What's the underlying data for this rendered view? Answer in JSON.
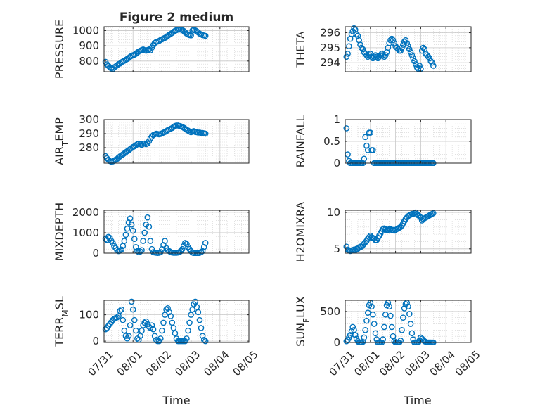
{
  "figure": {
    "title": "Figure 2 medium",
    "xlabel": "Time",
    "marker_color": "#0072bd"
  },
  "chart_data": [
    {
      "type": "scatter",
      "name": "pressure",
      "ylabel": "PRESSURE",
      "ylim": [
        730,
        1025
      ],
      "yticks": [
        800,
        900,
        1000
      ],
      "xticks": [],
      "xlabel": "",
      "grid": true,
      "minor_grid": true,
      "x": [
        0.05,
        0.1,
        0.15,
        0.2,
        0.25,
        0.3,
        0.35,
        0.4,
        0.45,
        0.5,
        0.55,
        0.6,
        0.65,
        0.7,
        0.75,
        0.8,
        0.85,
        0.9,
        0.95,
        1.0,
        1.05,
        1.1,
        1.15,
        1.2,
        1.25,
        1.3,
        1.35,
        1.4,
        1.45,
        1.5,
        1.55,
        1.6,
        1.65,
        1.7,
        1.75,
        1.8,
        1.85,
        1.9,
        1.95,
        2.0,
        2.05,
        2.1,
        2.15,
        2.2,
        2.25,
        2.3,
        2.35,
        2.4,
        2.45,
        2.5,
        2.55,
        2.6,
        2.65,
        2.7,
        2.75,
        2.8,
        2.85,
        2.9,
        2.95,
        3.0,
        3.05,
        3.1,
        3.15,
        3.2,
        3.25,
        3.3,
        3.35,
        3.4,
        3.45,
        3.5
      ],
      "y": [
        795,
        778,
        768,
        760,
        752,
        748,
        758,
        765,
        772,
        780,
        784,
        792,
        797,
        802,
        808,
        814,
        820,
        828,
        834,
        838,
        842,
        848,
        856,
        863,
        868,
        872,
        876,
        871,
        868,
        872,
        876,
        870,
        888,
        905,
        918,
        925,
        928,
        932,
        938,
        942,
        948,
        952,
        958,
        965,
        972,
        978,
        984,
        992,
        998,
        1003,
        1006,
        1007,
        1006,
        1003,
        997,
        988,
        980,
        974,
        970,
        968,
        1000,
        1005,
        1001,
        995,
        988,
        980,
        975,
        970,
        968,
        965
      ]
    },
    {
      "type": "scatter",
      "name": "theta",
      "ylabel": "THETA",
      "ylim": [
        293.4,
        296.4
      ],
      "yticks": [
        294,
        295,
        296
      ],
      "xticks": [],
      "xlabel": "",
      "grid": true,
      "minor_grid": true,
      "x": [
        0.05,
        0.1,
        0.15,
        0.2,
        0.25,
        0.3,
        0.35,
        0.4,
        0.45,
        0.5,
        0.55,
        0.6,
        0.65,
        0.7,
        0.75,
        0.8,
        0.85,
        0.9,
        0.95,
        1.0,
        1.05,
        1.1,
        1.15,
        1.2,
        1.25,
        1.3,
        1.35,
        1.4,
        1.45,
        1.5,
        1.55,
        1.6,
        1.65,
        1.7,
        1.75,
        1.8,
        1.85,
        1.9,
        1.95,
        2.0,
        2.05,
        2.1,
        2.15,
        2.2,
        2.25,
        2.3,
        2.35,
        2.4,
        2.45,
        2.5,
        2.55,
        2.6,
        2.65,
        2.7,
        2.75,
        2.8,
        2.85,
        2.9,
        2.95,
        3.0,
        3.05,
        3.1,
        3.15,
        3.2,
        3.25,
        3.3,
        3.35,
        3.4,
        3.45,
        3.5
      ],
      "y": [
        294.4,
        294.6,
        295.1,
        295.6,
        295.9,
        296.1,
        296.3,
        296.2,
        295.9,
        295.8,
        295.5,
        295.2,
        295.0,
        294.9,
        294.7,
        294.6,
        294.5,
        294.4,
        294.5,
        294.6,
        294.4,
        294.3,
        294.4,
        294.5,
        294.4,
        294.3,
        294.4,
        294.5,
        294.6,
        294.5,
        294.4,
        294.5,
        294.7,
        295.0,
        295.3,
        295.5,
        295.6,
        295.5,
        295.3,
        295.1,
        295.0,
        294.9,
        294.8,
        294.8,
        295.0,
        295.2,
        295.4,
        295.5,
        295.3,
        295.1,
        294.9,
        294.7,
        294.5,
        294.3,
        294.1,
        293.9,
        293.7,
        293.6,
        293.8,
        293.6,
        294.8,
        295.0,
        294.9,
        294.6,
        294.5,
        294.4,
        294.3,
        294.1,
        294.0,
        293.8
      ]
    },
    {
      "type": "scatter",
      "name": "air-temp",
      "ylabel": "AIR_TEMP",
      "ylim": [
        269,
        300
      ],
      "yticks": [
        280,
        290,
        300
      ],
      "xticks": [],
      "xlabel": "",
      "grid": true,
      "minor_grid": true,
      "x": [
        0.05,
        0.1,
        0.15,
        0.2,
        0.25,
        0.3,
        0.35,
        0.4,
        0.45,
        0.5,
        0.55,
        0.6,
        0.65,
        0.7,
        0.75,
        0.8,
        0.85,
        0.9,
        0.95,
        1.0,
        1.05,
        1.1,
        1.15,
        1.2,
        1.25,
        1.3,
        1.35,
        1.4,
        1.45,
        1.5,
        1.55,
        1.6,
        1.65,
        1.7,
        1.75,
        1.8,
        1.85,
        1.9,
        1.95,
        2.0,
        2.05,
        2.1,
        2.15,
        2.2,
        2.25,
        2.3,
        2.35,
        2.4,
        2.45,
        2.5,
        2.55,
        2.6,
        2.65,
        2.7,
        2.75,
        2.8,
        2.85,
        2.9,
        2.95,
        3.0,
        3.05,
        3.1,
        3.15,
        3.2,
        3.25,
        3.3,
        3.35,
        3.4,
        3.45,
        3.5
      ],
      "y": [
        274,
        272.5,
        271.5,
        270.5,
        270,
        270.2,
        270.8,
        271.5,
        272,
        273,
        273.8,
        274.5,
        275.2,
        276,
        276.8,
        277.5,
        278.2,
        279,
        279.8,
        280.5,
        281,
        281.8,
        282.5,
        283,
        282.5,
        282,
        282.8,
        283,
        282.5,
        283,
        284.5,
        286.5,
        288,
        289,
        289.5,
        290,
        289.8,
        289.5,
        289.8,
        290.2,
        290.8,
        291.2,
        291.8,
        292.5,
        293,
        293.5,
        294,
        294.8,
        295.5,
        295.8,
        295.8,
        295.5,
        295.2,
        294.8,
        294.2,
        293.5,
        292.8,
        292.2,
        291.5,
        291,
        291.5,
        291.8,
        291.2,
        291,
        290.8,
        290.8,
        290.5,
        290.5,
        290.2,
        290
      ]
    },
    {
      "type": "scatter",
      "name": "rainfall",
      "ylabel": "RAINFALL",
      "ylim": [
        0,
        1
      ],
      "yticks": [
        0,
        0.5,
        1
      ],
      "xticks": [],
      "xlabel": "",
      "grid": true,
      "minor_grid": true,
      "x": [
        0.05,
        0.1,
        0.15,
        0.2,
        0.25,
        0.3,
        0.35,
        0.4,
        0.45,
        0.5,
        0.55,
        0.6,
        0.65,
        0.7,
        0.75,
        0.8,
        0.85,
        0.9,
        0.95,
        1.0,
        1.05,
        1.1,
        1.15,
        1.2,
        1.25,
        1.3,
        1.35,
        1.4,
        1.45,
        1.5,
        1.55,
        1.6,
        1.65,
        1.7,
        1.75,
        1.8,
        1.85,
        1.9,
        1.95,
        2.0,
        2.05,
        2.1,
        2.15,
        2.2,
        2.25,
        2.3,
        2.35,
        2.4,
        2.45,
        2.5,
        2.55,
        2.6,
        2.65,
        2.7,
        2.75,
        2.8,
        2.85,
        2.9,
        2.95,
        3.0,
        3.05,
        3.1,
        3.15,
        3.2,
        3.25,
        3.3,
        3.35,
        3.4,
        3.45,
        3.5
      ],
      "y": [
        0.8,
        0.2,
        0.05,
        0,
        0,
        0,
        0,
        0,
        0,
        0,
        0,
        0,
        0,
        0,
        0.1,
        0.6,
        0.4,
        0.3,
        0.7,
        0.7,
        0.3,
        0.3,
        0,
        0,
        0,
        0,
        0,
        0,
        0,
        0,
        0,
        0,
        0,
        0,
        0,
        0,
        0,
        0,
        0,
        0,
        0,
        0,
        0,
        0,
        0,
        0,
        0,
        0,
        0,
        0,
        0,
        0,
        0,
        0,
        0,
        0,
        0,
        0,
        0,
        0,
        0,
        0,
        0,
        0,
        0,
        0,
        0,
        0,
        0,
        0
      ]
    },
    {
      "type": "scatter",
      "name": "mixdepth",
      "ylabel": "MIXDEPTH",
      "ylim": [
        0,
        2100
      ],
      "yticks": [
        0,
        1000,
        2000
      ],
      "xticks": [],
      "xlabel": "",
      "grid": true,
      "minor_grid": true,
      "x": [
        0.05,
        0.1,
        0.15,
        0.2,
        0.25,
        0.3,
        0.35,
        0.4,
        0.45,
        0.5,
        0.55,
        0.6,
        0.65,
        0.7,
        0.75,
        0.8,
        0.85,
        0.9,
        0.95,
        1.0,
        1.05,
        1.1,
        1.15,
        1.2,
        1.25,
        1.3,
        1.35,
        1.4,
        1.45,
        1.5,
        1.55,
        1.6,
        1.65,
        1.7,
        1.75,
        1.8,
        1.85,
        1.9,
        1.95,
        2.0,
        2.05,
        2.1,
        2.15,
        2.2,
        2.25,
        2.3,
        2.35,
        2.4,
        2.45,
        2.5,
        2.55,
        2.6,
        2.65,
        2.7,
        2.75,
        2.8,
        2.85,
        2.9,
        2.95,
        3.0,
        3.05,
        3.1,
        3.15,
        3.2,
        3.25,
        3.3,
        3.35,
        3.4,
        3.45,
        3.5
      ],
      "y": [
        700,
        650,
        800,
        750,
        600,
        500,
        350,
        250,
        150,
        100,
        120,
        180,
        350,
        600,
        900,
        1200,
        1500,
        1700,
        1400,
        1100,
        700,
        300,
        100,
        50,
        80,
        150,
        600,
        1000,
        1400,
        1750,
        1300,
        600,
        200,
        50,
        30,
        20,
        10,
        20,
        50,
        200,
        400,
        600,
        250,
        150,
        100,
        50,
        30,
        20,
        20,
        20,
        30,
        50,
        100,
        200,
        350,
        500,
        450,
        300,
        200,
        100,
        30,
        0,
        0,
        0,
        0,
        20,
        50,
        100,
        300,
        500
      ]
    },
    {
      "type": "scatter",
      "name": "h2omixra",
      "ylabel": "H2OMIXRA",
      "ylim": [
        4.4,
        10.3
      ],
      "yticks": [
        5,
        10
      ],
      "xticks": [],
      "xlabel": "",
      "grid": true,
      "minor_grid": true,
      "x": [
        0.05,
        0.1,
        0.15,
        0.2,
        0.25,
        0.3,
        0.35,
        0.4,
        0.45,
        0.5,
        0.55,
        0.6,
        0.65,
        0.7,
        0.75,
        0.8,
        0.85,
        0.9,
        0.95,
        1.0,
        1.05,
        1.1,
        1.15,
        1.2,
        1.25,
        1.3,
        1.35,
        1.4,
        1.45,
        1.5,
        1.55,
        1.6,
        1.65,
        1.7,
        1.75,
        1.8,
        1.85,
        1.9,
        1.95,
        2.0,
        2.05,
        2.1,
        2.15,
        2.2,
        2.25,
        2.3,
        2.35,
        2.4,
        2.45,
        2.5,
        2.55,
        2.6,
        2.65,
        2.7,
        2.75,
        2.8,
        2.85,
        2.9,
        2.95,
        3.0,
        3.05,
        3.1,
        3.15,
        3.2,
        3.25,
        3.3,
        3.35,
        3.4,
        3.45,
        3.5
      ],
      "y": [
        5.3,
        4.9,
        4.8,
        4.7,
        4.8,
        4.8,
        4.9,
        4.8,
        5.0,
        5.0,
        5.2,
        5.3,
        5.3,
        5.5,
        5.7,
        5.9,
        6.1,
        6.4,
        6.6,
        6.8,
        6.6,
        6.5,
        6.4,
        6.2,
        6.2,
        6.5,
        6.8,
        7.1,
        7.4,
        7.7,
        7.8,
        7.7,
        7.6,
        7.6,
        7.7,
        7.7,
        7.6,
        7.6,
        7.5,
        7.6,
        7.7,
        7.8,
        7.9,
        8.0,
        8.2,
        8.5,
        8.8,
        9.1,
        9.3,
        9.5,
        9.6,
        9.7,
        9.8,
        9.8,
        9.9,
        10.0,
        9.8,
        9.6,
        9.5,
        9.3,
        8.9,
        9.1,
        9.2,
        9.3,
        9.4,
        9.5,
        9.6,
        9.7,
        9.8,
        9.9
      ]
    },
    {
      "type": "scatter",
      "name": "terr-msl",
      "ylabel": "TERR_MSL",
      "ylim": [
        -5,
        155
      ],
      "yticks": [
        0,
        100
      ],
      "xlabel": "Time",
      "xticks": [
        "07/31",
        "08/01",
        "08/02",
        "08/03",
        "08/04",
        "08/05"
      ],
      "grid": true,
      "minor_grid": true,
      "x": [
        0.05,
        0.1,
        0.15,
        0.2,
        0.25,
        0.3,
        0.35,
        0.4,
        0.45,
        0.5,
        0.55,
        0.6,
        0.65,
        0.7,
        0.75,
        0.8,
        0.85,
        0.9,
        0.95,
        1.0,
        1.05,
        1.1,
        1.15,
        1.2,
        1.25,
        1.3,
        1.35,
        1.4,
        1.45,
        1.5,
        1.55,
        1.6,
        1.65,
        1.7,
        1.75,
        1.8,
        1.85,
        1.9,
        1.95,
        2.0,
        2.05,
        2.1,
        2.15,
        2.2,
        2.25,
        2.3,
        2.35,
        2.4,
        2.45,
        2.5,
        2.55,
        2.6,
        2.65,
        2.7,
        2.75,
        2.8,
        2.85,
        2.9,
        2.95,
        3.0,
        3.05,
        3.1,
        3.15,
        3.2,
        3.25,
        3.3,
        3.35,
        3.4,
        3.45,
        3.5
      ],
      "y": [
        45,
        50,
        58,
        65,
        72,
        80,
        85,
        88,
        90,
        95,
        115,
        120,
        80,
        40,
        20,
        10,
        20,
        60,
        150,
        120,
        80,
        40,
        10,
        5,
        20,
        40,
        60,
        70,
        75,
        65,
        55,
        50,
        60,
        45,
        20,
        5,
        0,
        0,
        10,
        40,
        70,
        100,
        120,
        125,
        110,
        95,
        70,
        50,
        30,
        10,
        0,
        0,
        0,
        0,
        0,
        0,
        10,
        40,
        70,
        100,
        120,
        140,
        150,
        130,
        110,
        80,
        50,
        20,
        5,
        0
      ]
    },
    {
      "type": "scatter",
      "name": "sun-flux",
      "ylabel": "SUN_FLUX",
      "ylim": [
        0,
        680
      ],
      "yticks": [
        0,
        500
      ],
      "xlabel": "Time",
      "xticks": [
        "07/31",
        "08/01",
        "08/02",
        "08/03",
        "08/04",
        "08/05"
      ],
      "grid": true,
      "minor_grid": true,
      "x": [
        0.05,
        0.1,
        0.15,
        0.2,
        0.25,
        0.3,
        0.35,
        0.4,
        0.45,
        0.5,
        0.55,
        0.6,
        0.65,
        0.7,
        0.75,
        0.8,
        0.85,
        0.9,
        0.95,
        1.0,
        1.05,
        1.1,
        1.15,
        1.2,
        1.25,
        1.3,
        1.35,
        1.4,
        1.45,
        1.5,
        1.55,
        1.6,
        1.65,
        1.7,
        1.75,
        1.8,
        1.85,
        1.9,
        1.95,
        2.0,
        2.05,
        2.1,
        2.15,
        2.2,
        2.25,
        2.3,
        2.35,
        2.4,
        2.45,
        2.5,
        2.55,
        2.6,
        2.65,
        2.7,
        2.75,
        2.8,
        2.85,
        2.9,
        2.95,
        3.0,
        3.05,
        3.1,
        3.15,
        3.2,
        3.25,
        3.3,
        3.35,
        3.4,
        3.45,
        3.5
      ],
      "y": [
        20,
        40,
        80,
        120,
        180,
        250,
        200,
        120,
        60,
        20,
        0,
        0,
        0,
        10,
        80,
        200,
        350,
        480,
        600,
        640,
        580,
        450,
        300,
        150,
        50,
        0,
        0,
        0,
        0,
        50,
        250,
        450,
        600,
        640,
        580,
        430,
        250,
        100,
        20,
        0,
        0,
        0,
        0,
        30,
        200,
        400,
        550,
        620,
        640,
        580,
        460,
        300,
        150,
        50,
        0,
        0,
        0,
        0,
        30,
        80,
        60,
        40,
        20,
        10,
        0,
        0,
        0,
        0,
        0,
        0
      ]
    }
  ]
}
